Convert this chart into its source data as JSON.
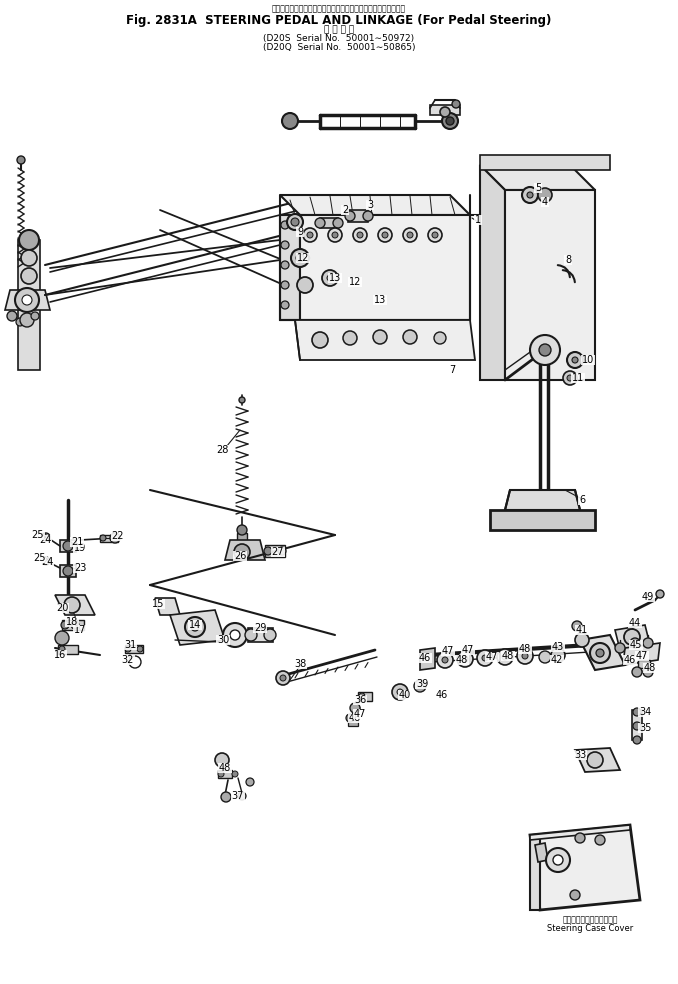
{
  "title_jp": "ステアリングペダルおよびリンケージ（ペダルステアリング用）",
  "title_main": "Fig. 2831A  STEERING PEDAL AND LINKAGE (For Pedal Steering)",
  "serial_header": "適 用 号 機",
  "serial1": "(D20S  Serial No.  50001∼50972)",
  "serial2": "(D20Q  Serial No.  50001∼50865)",
  "footer_jp": "ステアリングケースカバー",
  "footer_en": "Steering Case Cover",
  "bg": "#ffffff",
  "fg": "#000000",
  "lc": "#1a1a1a"
}
